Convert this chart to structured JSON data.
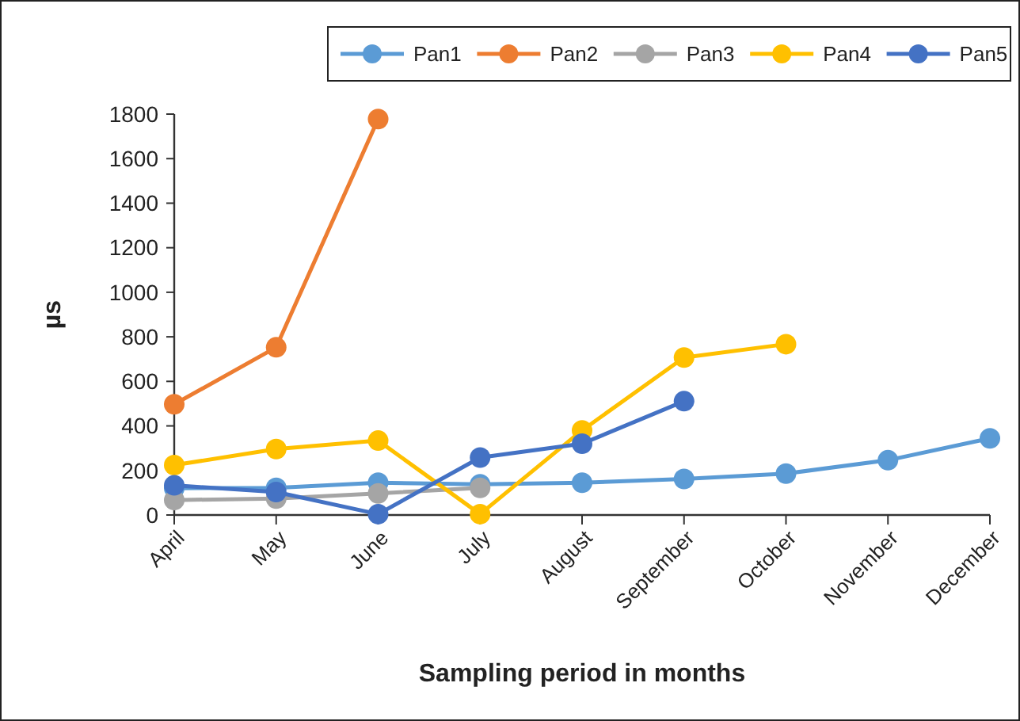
{
  "chart_data": {
    "type": "line",
    "xlabel": "Sampling period in months",
    "ylabel": "µs",
    "categories": [
      "April",
      "May",
      "June",
      "July",
      "August",
      "September",
      "October",
      "November",
      "December"
    ],
    "ylim": [
      0,
      1800
    ],
    "yticks": [
      0,
      200,
      400,
      600,
      800,
      1000,
      1200,
      1400,
      1600,
      1800
    ],
    "grid": false,
    "legend": "top right",
    "marker": "circle",
    "line_style": "solid",
    "series": [
      {
        "name": "Pan1",
        "color": "#5b9bd5",
        "values": [
          120,
          122,
          145,
          138,
          145,
          162,
          186,
          246,
          344
        ]
      },
      {
        "name": "Pan2",
        "color": "#ed7d31",
        "values": [
          497,
          753,
          1778,
          null,
          null,
          null,
          null,
          null,
          null
        ]
      },
      {
        "name": "Pan3",
        "color": "#a5a5a5",
        "values": [
          67,
          74,
          97,
          122,
          null,
          null,
          null,
          null,
          null
        ]
      },
      {
        "name": "Pan4",
        "color": "#ffc000",
        "values": [
          224,
          296,
          334,
          4,
          380,
          707,
          767,
          null,
          null
        ]
      },
      {
        "name": "Pan5",
        "color": "#4472c4",
        "values": [
          133,
          103,
          4,
          258,
          320,
          511,
          null,
          null,
          null
        ]
      }
    ]
  }
}
